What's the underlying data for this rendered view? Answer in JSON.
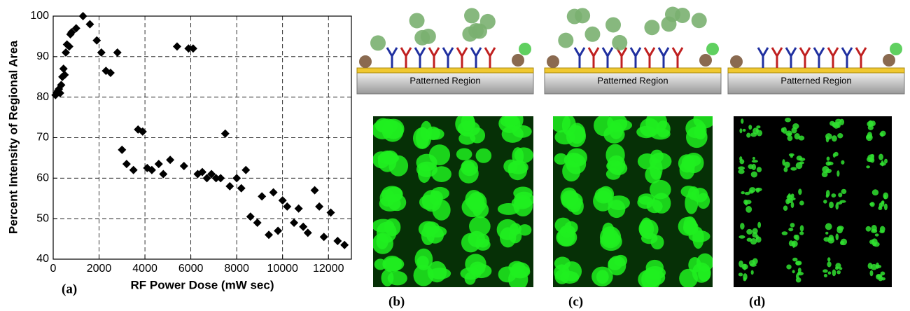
{
  "chart_data": {
    "type": "scatter",
    "x_label": "RF Power Dose (mW sec)",
    "y_label": "Percent Intensity of Regional Area",
    "panel_label": "(a)",
    "color": "#000000",
    "xlim": [
      0,
      13000
    ],
    "ylim": [
      40,
      100
    ],
    "xticks": [
      0,
      2000,
      4000,
      6000,
      8000,
      10000,
      12000
    ],
    "yticks": [
      40,
      50,
      60,
      70,
      80,
      90,
      100
    ],
    "grid": true,
    "x": [
      100,
      150,
      200,
      250,
      300,
      350,
      400,
      450,
      500,
      550,
      600,
      700,
      750,
      800,
      1000,
      1300,
      1600,
      1900,
      2100,
      2300,
      2500,
      2800,
      3000,
      3200,
      3500,
      3700,
      3900,
      4100,
      4300,
      4600,
      4800,
      5100,
      5400,
      5700,
      5900,
      6100,
      6300,
      6500,
      6700,
      6900,
      7100,
      7300,
      7500,
      7700,
      8000,
      8200,
      8400,
      8600,
      8900,
      9100,
      9400,
      9600,
      9800,
      10000,
      10200,
      10500,
      10700,
      10900,
      11100,
      11400,
      11600,
      11800,
      12100,
      12400,
      12700
    ],
    "values": [
      80.5,
      81,
      81.5,
      82,
      81,
      83,
      85,
      87,
      85.5,
      91,
      93,
      92.5,
      95.5,
      96,
      97,
      100,
      98,
      94,
      91,
      86.5,
      86,
      91,
      67,
      63.5,
      62,
      72,
      71.5,
      62.5,
      62,
      63.5,
      61,
      64.5,
      92.5,
      63,
      92,
      92,
      61,
      61.5,
      60,
      61,
      60,
      60,
      71,
      58,
      60,
      57.5,
      62,
      50.5,
      49,
      55.5,
      46,
      56.5,
      47,
      54.5,
      53,
      49,
      52.5,
      48,
      46.5,
      57,
      53,
      45.5,
      51.5,
      44.5,
      43.5
    ]
  },
  "panels": [
    {
      "schematic_label": "Patterned Region",
      "label": "(b)"
    },
    {
      "schematic_label": "Patterned Region",
      "label": "(c)"
    },
    {
      "schematic_label": "Patterned Region",
      "label": "(d)"
    }
  ]
}
